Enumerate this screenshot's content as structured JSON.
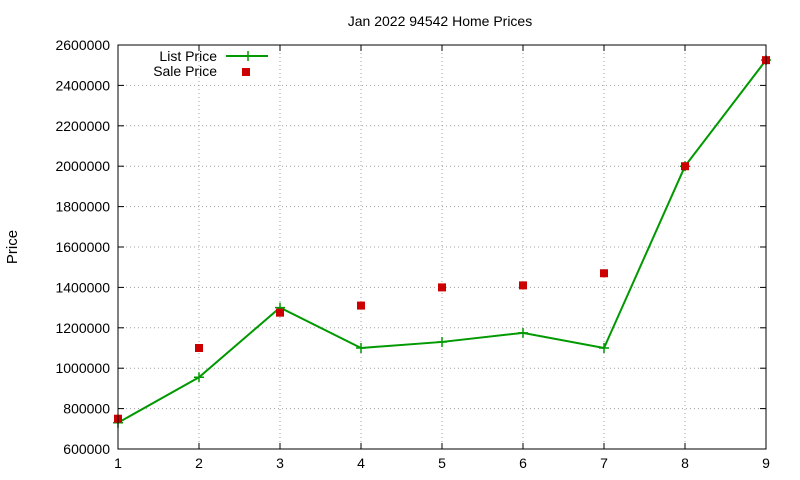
{
  "chart_data": {
    "type": "line",
    "title": "Jan 2022 94542 Home Prices",
    "xlabel": "",
    "ylabel": "Price",
    "x": [
      1,
      2,
      3,
      4,
      5,
      6,
      7,
      8,
      9
    ],
    "xlim": [
      1,
      9
    ],
    "ylim": [
      600000,
      2600000
    ],
    "xticks": [
      1,
      2,
      3,
      4,
      5,
      6,
      7,
      8,
      9
    ],
    "yticks": [
      600000,
      800000,
      1000000,
      1200000,
      1400000,
      1600000,
      1800000,
      2000000,
      2200000,
      2400000,
      2600000
    ],
    "grid": true,
    "legend_position": "top-left",
    "series": [
      {
        "name": "List Price",
        "style": "line+cross",
        "color": "#009900",
        "values": [
          730000,
          955000,
          1300000,
          1100000,
          1130000,
          1175000,
          1100000,
          2000000,
          2525000
        ]
      },
      {
        "name": "Sale Price",
        "style": "square",
        "color": "#cc0000",
        "values": [
          750000,
          1100000,
          1275000,
          1310000,
          1400000,
          1410000,
          1470000,
          2000000,
          2525000
        ]
      }
    ]
  }
}
